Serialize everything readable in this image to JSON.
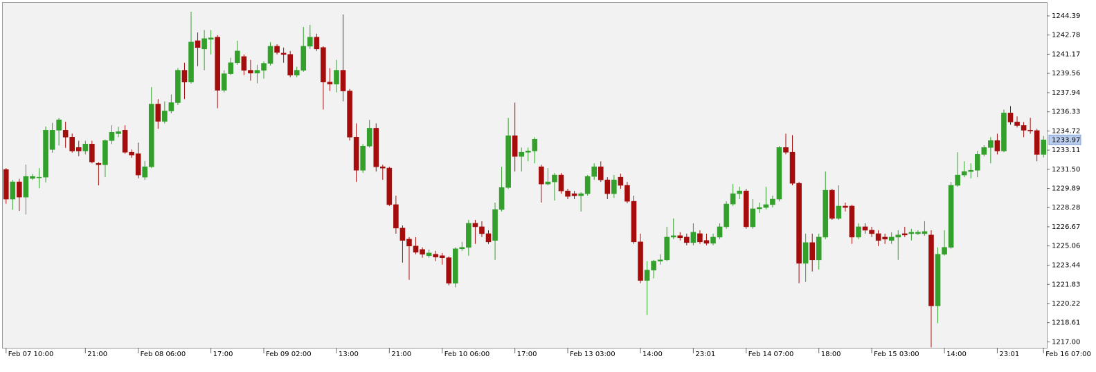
{
  "chart_data": {
    "type": "candlestick",
    "categories": [
      "Feb 07 10:00",
      null,
      null,
      null,
      null,
      null,
      null,
      null,
      null,
      null,
      null,
      null,
      "21:00",
      null,
      null,
      null,
      null,
      null,
      null,
      null,
      "Feb 08 06:00",
      null,
      null,
      null,
      null,
      null,
      null,
      null,
      null,
      null,
      null,
      "17:00",
      null,
      null,
      null,
      null,
      null,
      null,
      null,
      "Feb 09 02:00",
      null,
      null,
      null,
      null,
      null,
      null,
      null,
      null,
      null,
      null,
      "13:00",
      null,
      null,
      null,
      null,
      null,
      null,
      null,
      "21:00",
      null,
      null,
      null,
      null,
      null,
      null,
      null,
      "Feb 10 06:00",
      null,
      null,
      null,
      null,
      null,
      null,
      null,
      null,
      null,
      null,
      "17:00",
      null,
      null,
      null,
      null,
      null,
      null,
      null,
      "Feb 13 03:00",
      null,
      null,
      null,
      null,
      null,
      null,
      null,
      null,
      null,
      null,
      "14:00",
      null,
      null,
      null,
      null,
      null,
      null,
      null,
      "23:01",
      null,
      null,
      null,
      null,
      null,
      null,
      null,
      "Feb 14 07:00",
      null,
      null,
      null,
      null,
      null,
      null,
      null,
      null,
      null,
      null,
      "18:00",
      null,
      null,
      null,
      null,
      null,
      null,
      null,
      "Feb 15 03:00",
      null,
      null,
      null,
      null,
      null,
      null,
      null,
      null,
      null,
      null,
      "14:00",
      null,
      null,
      null,
      null,
      null,
      null,
      null,
      "23:01",
      null,
      null,
      null,
      null,
      null,
      null,
      "Feb 16 07:00"
    ],
    "open": [
      1231.48,
      1228.99,
      1230.44,
      1229.16,
      1230.73,
      1230.78,
      1230.84,
      1233.16,
      1234.78,
      1234.78,
      1234.2,
      1233.33,
      1233.04,
      1233.62,
      1232.0,
      1231.88,
      1233.91,
      1234.49,
      1234.78,
      1232.93,
      1232.81,
      1230.84,
      1231.71,
      1236.98,
      1235.53,
      1236.4,
      1237.1,
      1239.82,
      1238.83,
      1242.3,
      1241.61,
      1242.42,
      1242.6,
      1238.14,
      1239.53,
      1240.45,
      1240.97,
      1239.82,
      1239.58,
      1239.82,
      1240.4,
      1241.84,
      1241.26,
      1241.15,
      1239.41,
      1239.82,
      1241.84,
      1242.6,
      1241.73,
      1238.83,
      1238.66,
      1239.82,
      1238.08,
      1234.2,
      1231.42,
      1233.45,
      1234.95,
      1231.71,
      1231.6,
      1228.53,
      1226.56,
      1225.63,
      1225.05,
      1224.76,
      1224.24,
      1224.36,
      1224.24,
      1224.07,
      1221.93,
      1224.82,
      1224.94,
      1226.96,
      1226.67,
      1226.09,
      1225.52,
      1228.12,
      1229.97,
      1234.32,
      1232.58,
      1232.93,
      1233.04,
      1231.71,
      1230.26,
      1230.44,
      1231.02,
      1229.68,
      1229.45,
      1229.28,
      1229.45,
      1230.9,
      1231.71,
      1230.61,
      1229.45,
      1230.84,
      1230.15,
      1228.81,
      1225.4,
      1222.16,
      1223.03,
      1223.78,
      1223.89,
      1225.8,
      1225.92,
      1225.8,
      1225.34,
      1226.09,
      1225.52,
      1225.28,
      1225.8,
      1226.67,
      1228.58,
      1229.45,
      1229.68,
      1226.67,
      1228.18,
      1228.29,
      1228.53,
      1228.99,
      1233.33,
      1232.93,
      1230.32,
      1223.6,
      1225.34,
      1223.89,
      1225.8,
      1229.74,
      1227.37,
      1228.41,
      1228.41,
      1225.8,
      1226.67,
      1226.38,
      1226.09,
      1225.8,
      1225.52,
      1225.8,
      1226.09,
      1226.09,
      1226.09,
      1226.09,
      1225.98,
      1220.02,
      1224.36,
      1224.94,
      1230.15,
      1231.02,
      1231.31,
      1231.42,
      1232.75,
      1233.33,
      1233.91,
      1233.04,
      1236.23,
      1235.47,
      1235.18,
      1234.78,
      1234.75,
      1232.75
    ],
    "high": [
      1231.6,
      1230.6,
      1230.7,
      1231.9,
      1231.1,
      1231.6,
      1235.1,
      1235.4,
      1235.8,
      1235.5,
      1234.5,
      1233.9,
      1233.9,
      1233.9,
      1232.1,
      1234.0,
      1235.2,
      1235.07,
      1235.2,
      1233.16,
      1233.74,
      1232.2,
      1238.4,
      1237.4,
      1237.2,
      1237.79,
      1240.0,
      1240.45,
      1244.74,
      1243.0,
      1243.2,
      1243.2,
      1242.77,
      1239.82,
      1240.86,
      1242.3,
      1241.15,
      1240.69,
      1240.28,
      1240.57,
      1242.19,
      1242.0,
      1241.73,
      1241.44,
      1240.11,
      1243.46,
      1243.64,
      1242.89,
      1241.84,
      1240.0,
      1240.69,
      1244.51,
      1238.25,
      1235.36,
      1233.62,
      1235.65,
      1235.36,
      1231.88,
      1231.71,
      1229.28,
      1226.79,
      1225.8,
      1225.8,
      1224.94,
      1224.76,
      1224.65,
      1224.47,
      1224.18,
      1224.94,
      1225.4,
      1227.25,
      1227.25,
      1227.14,
      1226.38,
      1228.7,
      1231.71,
      1235.82,
      1237.1,
      1233.33,
      1233.33,
      1234.2,
      1231.88,
      1231.6,
      1231.19,
      1231.19,
      1229.86,
      1229.68,
      1229.57,
      1231.02,
      1232.0,
      1232.17,
      1230.84,
      1231.02,
      1231.13,
      1230.44,
      1229.28,
      1226.09,
      1223.78,
      1223.89,
      1224.36,
      1226.67,
      1227.37,
      1226.21,
      1226.09,
      1226.96,
      1226.38,
      1226.09,
      1226.09,
      1226.96,
      1228.81,
      1230.26,
      1230.03,
      1229.86,
      1228.99,
      1228.7,
      1230.03,
      1229.28,
      1233.45,
      1234.49,
      1234.37,
      1230.44,
      1226.09,
      1226.09,
      1226.09,
      1231.31,
      1229.86,
      1230.15,
      1228.7,
      1228.53,
      1226.96,
      1226.96,
      1226.67,
      1226.38,
      1226.09,
      1226.21,
      1226.38,
      1226.67,
      1226.5,
      1226.38,
      1227.14,
      1226.38,
      1224.94,
      1226.38,
      1230.44,
      1232.93,
      1232.17,
      1232.0,
      1233.04,
      1233.51,
      1234.2,
      1234.49,
      1236.52,
      1236.81,
      1235.94,
      1235.47,
      1235.82,
      1234.9,
      1234.3
    ],
    "low": [
      1228.6,
      1228.1,
      1228.0,
      1227.7,
      1230.6,
      1229.9,
      1230.4,
      1232.9,
      1233.5,
      1233.3,
      1232.9,
      1232.6,
      1232.75,
      1232.0,
      1230.15,
      1230.84,
      1233.62,
      1234.2,
      1232.8,
      1232.46,
      1230.73,
      1230.6,
      1231.6,
      1234.9,
      1235.36,
      1236.2,
      1236.9,
      1237.4,
      1238.7,
      1240.16,
      1239.82,
      1241.15,
      1236.63,
      1237.96,
      1239.41,
      1240.28,
      1239.41,
      1238.95,
      1238.72,
      1239.12,
      1240.22,
      1241.15,
      1240.45,
      1239.24,
      1239.24,
      1239.7,
      1241.61,
      1241.44,
      1236.52,
      1238.08,
      1237.96,
      1237.21,
      1233.91,
      1230.44,
      1231.19,
      1233.33,
      1231.31,
      1230.61,
      1228.41,
      1226.09,
      1223.66,
      1222.21,
      1224.36,
      1224.07,
      1224.07,
      1223.78,
      1223.49,
      1221.75,
      1221.58,
      1224.65,
      1224.24,
      1225.23,
      1225.8,
      1225.23,
      1223.89,
      1227.95,
      1229.86,
      1231.31,
      1231.31,
      1232.17,
      1232.0,
      1228.7,
      1230.15,
      1228.87,
      1229.45,
      1228.99,
      1228.99,
      1227.95,
      1229.28,
      1230.61,
      1230.44,
      1228.99,
      1229.1,
      1229.86,
      1228.64,
      1225.23,
      1221.93,
      1219.26,
      1222.33,
      1223.49,
      1223.78,
      1225.63,
      1225.52,
      1225.11,
      1225.11,
      1225.23,
      1225.11,
      1225.11,
      1225.63,
      1226.5,
      1228.41,
      1228.99,
      1226.5,
      1226.5,
      1227.83,
      1228.12,
      1228.29,
      1228.81,
      1232.75,
      1230.15,
      1221.93,
      1222.04,
      1222.91,
      1223.08,
      1225.63,
      1227.25,
      1227.25,
      1227.95,
      1225.23,
      1225.63,
      1226.09,
      1225.8,
      1225.05,
      1225.23,
      1225.23,
      1223.89,
      1225.8,
      1225.52,
      1225.98,
      1225.92,
      1216.54,
      1218.57,
      1224.24,
      1224.82,
      1230.03,
      1230.84,
      1230.73,
      1230.84,
      1232.58,
      1232.0,
      1232.75,
      1232.93,
      1235.24,
      1235.01,
      1234.2,
      1234.49,
      1232.17,
      1232.5
    ],
    "close": [
      1228.99,
      1230.44,
      1229.16,
      1230.9,
      1230.9,
      1230.84,
      1234.78,
      1234.78,
      1235.65,
      1234.2,
      1233.04,
      1233.04,
      1233.62,
      1232.12,
      1231.88,
      1233.91,
      1234.61,
      1234.66,
      1232.93,
      1232.7,
      1231.02,
      1231.71,
      1236.98,
      1235.53,
      1236.4,
      1237.1,
      1239.82,
      1238.83,
      1242.19,
      1241.73,
      1242.48,
      1242.54,
      1238.14,
      1239.53,
      1240.45,
      1241.44,
      1239.82,
      1239.58,
      1239.82,
      1240.4,
      1241.84,
      1241.32,
      1241.15,
      1239.41,
      1239.82,
      1241.84,
      1242.6,
      1241.61,
      1238.83,
      1238.66,
      1239.82,
      1238.08,
      1234.2,
      1231.42,
      1233.45,
      1234.95,
      1231.71,
      1231.6,
      1228.53,
      1226.56,
      1225.52,
      1225.05,
      1224.53,
      1224.36,
      1224.47,
      1224.12,
      1224.07,
      1221.93,
      1224.82,
      1224.94,
      1226.96,
      1226.67,
      1226.09,
      1225.4,
      1228.12,
      1229.97,
      1234.32,
      1232.58,
      1232.93,
      1233.04,
      1234.03,
      1230.26,
      1230.44,
      1231.02,
      1229.68,
      1229.22,
      1229.28,
      1229.45,
      1230.9,
      1231.71,
      1230.61,
      1229.45,
      1230.61,
      1230.15,
      1228.81,
      1225.4,
      1222.16,
      1223.03,
      1223.78,
      1223.89,
      1225.8,
      1225.92,
      1225.75,
      1225.34,
      1226.21,
      1225.4,
      1225.28,
      1225.8,
      1226.67,
      1228.58,
      1229.45,
      1229.68,
      1226.67,
      1228.18,
      1228.29,
      1228.53,
      1228.99,
      1233.33,
      1232.93,
      1230.32,
      1223.6,
      1225.34,
      1223.89,
      1225.8,
      1229.74,
      1227.37,
      1228.41,
      1228.29,
      1225.8,
      1226.67,
      1226.38,
      1226.09,
      1225.52,
      1225.63,
      1225.8,
      1225.98,
      1225.98,
      1226.21,
      1226.21,
      1226.27,
      1220.02,
      1224.36,
      1224.94,
      1230.15,
      1231.02,
      1231.31,
      1231.42,
      1232.75,
      1233.33,
      1233.91,
      1233.04,
      1236.23,
      1235.47,
      1235.18,
      1234.78,
      1234.75,
      1232.75,
      1233.97
    ],
    "up_color": "#33a02c",
    "down_color": "#a50d0d",
    "current_price": 1233.97,
    "ylim": [
      1216.5,
      1245.55
    ],
    "yticks": [
      {
        "value": 1217,
        "label": "1217.00"
      },
      1218.61,
      1220.22,
      1221.83,
      1223.44,
      1225.06,
      1226.67,
      1228.28,
      1229.89,
      {
        "value": 1231.5,
        "label": "1231.50"
      },
      1233.11,
      1234.72,
      1236.33,
      1237.94,
      1239.56,
      1241.17,
      1242.78,
      1244.39
    ],
    "grid": false
  }
}
